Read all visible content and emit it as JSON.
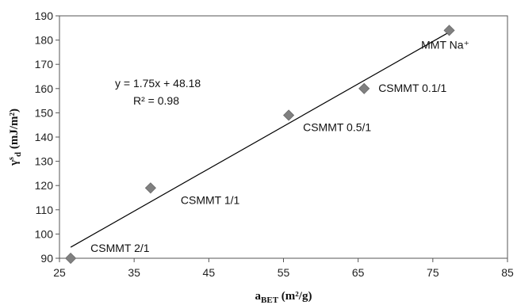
{
  "chart_data": {
    "type": "scatter",
    "xlabel": {
      "base": "a",
      "sub": "BET",
      "units": "(m²/g)"
    },
    "ylabel": {
      "base": "γ",
      "sup": "s",
      "sub": "d",
      "units": "(mJ/m²)"
    },
    "xlim": [
      25,
      85
    ],
    "ylim": [
      90,
      190
    ],
    "xticks": [
      25,
      35,
      45,
      55,
      65,
      75,
      85
    ],
    "yticks": [
      90,
      100,
      110,
      120,
      130,
      140,
      150,
      160,
      170,
      180,
      190
    ],
    "marker_color": "#808080",
    "points": [
      {
        "x": 26.5,
        "y": 90,
        "label": "CSMMT 2/1"
      },
      {
        "x": 37.2,
        "y": 119,
        "label": "CSMMT 1/1"
      },
      {
        "x": 55.7,
        "y": 149,
        "label": "CSMMT 0.5/1"
      },
      {
        "x": 65.8,
        "y": 160,
        "label": "CSMMT 0.1/1"
      },
      {
        "x": 77.2,
        "y": 184,
        "label": "MMT Na⁺"
      }
    ],
    "trendline": {
      "slope": 1.75,
      "intercept": 48.18,
      "x_range": [
        26.5,
        77.2
      ]
    },
    "annotations": {
      "equation": "y = 1.75x + 48.18",
      "r_squared": "R² = 0.98"
    },
    "grid": false
  }
}
